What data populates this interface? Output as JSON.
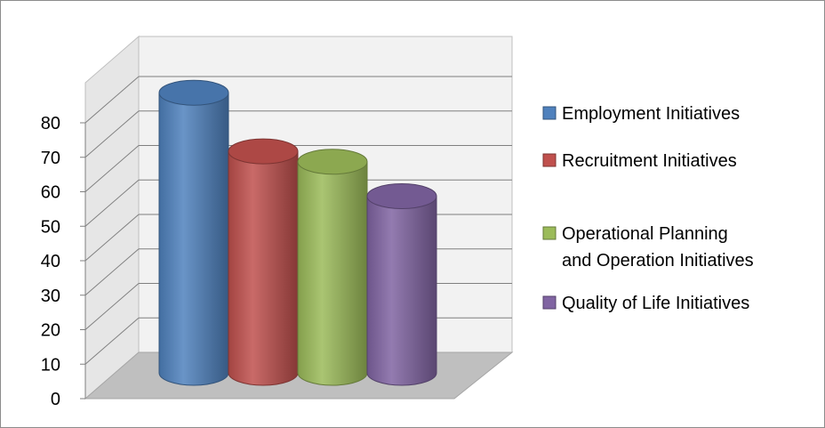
{
  "chart_data": {
    "type": "bar",
    "style": "3d-cylinder",
    "categories": [
      "Employment Initiatives",
      "Recruitment Initiatives",
      "Operational Planning and Operation Initiatives",
      "Quality of Life Initiatives"
    ],
    "series": [
      {
        "name": "Employment Initiatives",
        "value": 82,
        "color": "#4f81bd"
      },
      {
        "name": "Recruitment Initiatives",
        "value": 65,
        "color": "#c0504d"
      },
      {
        "name": "Operational Planning and Operation Initiatives",
        "value": 62,
        "color": "#9bbb59"
      },
      {
        "name": "Quality of Life Initiatives",
        "value": 52,
        "color": "#8064a2"
      }
    ],
    "legend_lines": [
      [
        "Employment Initiatives"
      ],
      [
        "Recruitment Initiatives"
      ],
      [
        "Operational Planning",
        "and Operation Initiatives"
      ],
      [
        "Quality of Life Initiatives"
      ]
    ],
    "yticks": [
      "0",
      "10",
      "20",
      "30",
      "40",
      "50",
      "60",
      "70",
      "80"
    ],
    "ylim": [
      0,
      80
    ],
    "grid": true,
    "legend_position": "right",
    "title": "",
    "xlabel": "",
    "ylabel": ""
  }
}
